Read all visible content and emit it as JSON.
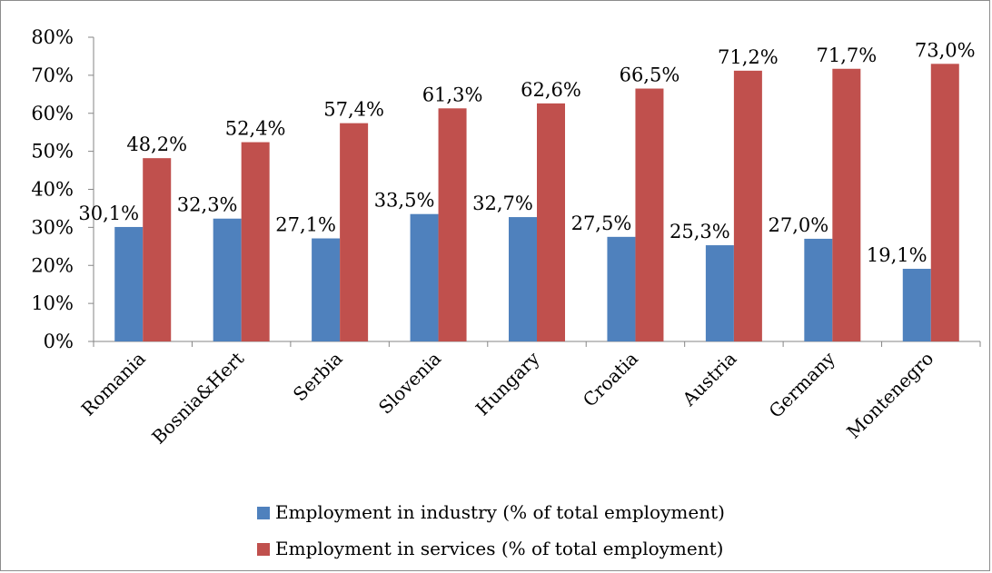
{
  "chart_data": {
    "type": "bar",
    "categories": [
      "Romania",
      "Bosnia&Hert",
      "Serbia",
      "Slovenia",
      "Hungary",
      "Croatia",
      "Austria",
      "Germany",
      "Montenegro"
    ],
    "series": [
      {
        "name": "Employment in industry (% of total employment)",
        "color": "#4f81bd",
        "values": [
          30.1,
          32.3,
          27.1,
          33.5,
          32.7,
          27.5,
          25.3,
          27.0,
          19.1
        ],
        "labels": [
          "30,1%",
          "32,3%",
          "27,1%",
          "33,5%",
          "32,7%",
          "27,5%",
          "25,3%",
          "27,0%",
          "19,1%"
        ]
      },
      {
        "name": "Employment in services (% of total employment)",
        "color": "#c0504d",
        "values": [
          48.2,
          52.4,
          57.4,
          61.3,
          62.6,
          66.5,
          71.2,
          71.7,
          73.0
        ],
        "labels": [
          "48,2%",
          "52,4%",
          "57,4%",
          "61,3%",
          "62,6%",
          "66,5%",
          "71,2%",
          "71,7%",
          "73,0%"
        ]
      }
    ],
    "y_ticks": [
      "0%",
      "10%",
      "20%",
      "30%",
      "40%",
      "50%",
      "60%",
      "70%",
      "80%"
    ],
    "ylim": [
      0,
      80
    ],
    "title": "",
    "xlabel": "",
    "ylabel": "",
    "grid": false,
    "legend_position": "bottom"
  }
}
